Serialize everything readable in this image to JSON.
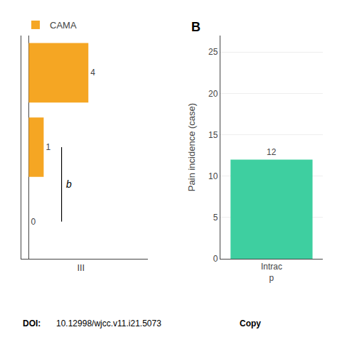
{
  "chart_data": [
    {
      "type": "bar",
      "orientation": "horizontal",
      "categories": [
        null,
        null,
        null
      ],
      "series": [
        {
          "name": "CAMA",
          "color": "#F5A623",
          "values": [
            4,
            1,
            0
          ]
        }
      ],
      "xlim": [
        -0.5,
        8.0
      ],
      "xticks": [
        {
          "value": 3.5,
          "label": "III"
        }
      ],
      "data_labels": true,
      "legend": "upper left",
      "tick_labels": "x",
      "annotations": [
        "b"
      ]
    },
    {
      "type": "bar",
      "title": "B",
      "categories": [
        "Intrac\np"
      ],
      "values": [
        12
      ],
      "color": "#3ECFA0",
      "ylabel": "Pain incidence (case)",
      "ylim": [
        0,
        27
      ],
      "yticks": [
        0,
        5,
        10,
        15,
        20,
        25
      ],
      "data_labels": true,
      "annotations": [
        "DOI:",
        "10.12998/wjcc.v11.i21.5073",
        "Copy"
      ]
    }
  ]
}
